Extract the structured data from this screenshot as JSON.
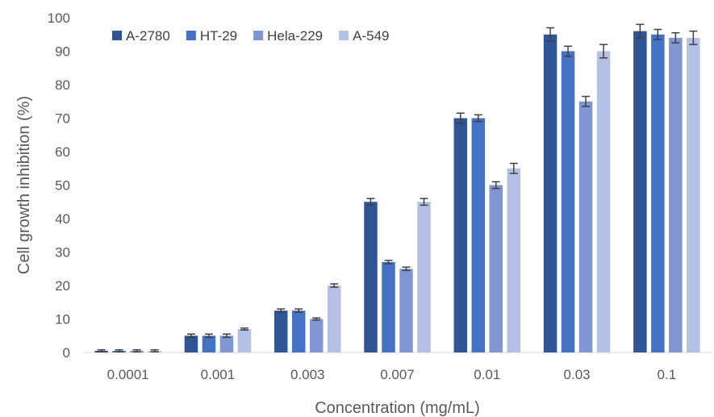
{
  "chart_data": {
    "type": "bar",
    "title": "",
    "xlabel": "Concentration (mg/mL)",
    "ylabel": "Cell growth inhibition (%)",
    "ylim": [
      0,
      100
    ],
    "yticks": [
      0,
      10,
      20,
      30,
      40,
      50,
      60,
      70,
      80,
      90,
      100
    ],
    "categories": [
      "0.0001",
      "0.001",
      "0.003",
      "0.007",
      "0.01",
      "0.03",
      "0.1"
    ],
    "legend_position": "top-left",
    "grid": false,
    "error_bars": true,
    "series": [
      {
        "name": "A-2780",
        "color": "#2f5597",
        "values": [
          0.5,
          5,
          12.5,
          45,
          70,
          95,
          96
        ],
        "errors": [
          0.3,
          0.5,
          0.5,
          1,
          1.5,
          2,
          2
        ]
      },
      {
        "name": "HT-29",
        "color": "#4472c4",
        "values": [
          0.5,
          5,
          12.5,
          27,
          70,
          90,
          95
        ],
        "errors": [
          0.3,
          0.5,
          0.5,
          0.5,
          1,
          1.5,
          1.5
        ]
      },
      {
        "name": "Hela-229",
        "color": "#7f96d2",
        "values": [
          0.5,
          5,
          10,
          25,
          50,
          75,
          94
        ],
        "errors": [
          0.3,
          0.5,
          0.3,
          0.5,
          1,
          1.5,
          1.5
        ]
      },
      {
        "name": "A-549",
        "color": "#b4c0e4",
        "values": [
          0.5,
          7,
          20,
          45,
          55,
          90,
          94
        ],
        "errors": [
          0.3,
          0.3,
          0.5,
          1,
          1.5,
          2,
          2
        ]
      }
    ]
  }
}
